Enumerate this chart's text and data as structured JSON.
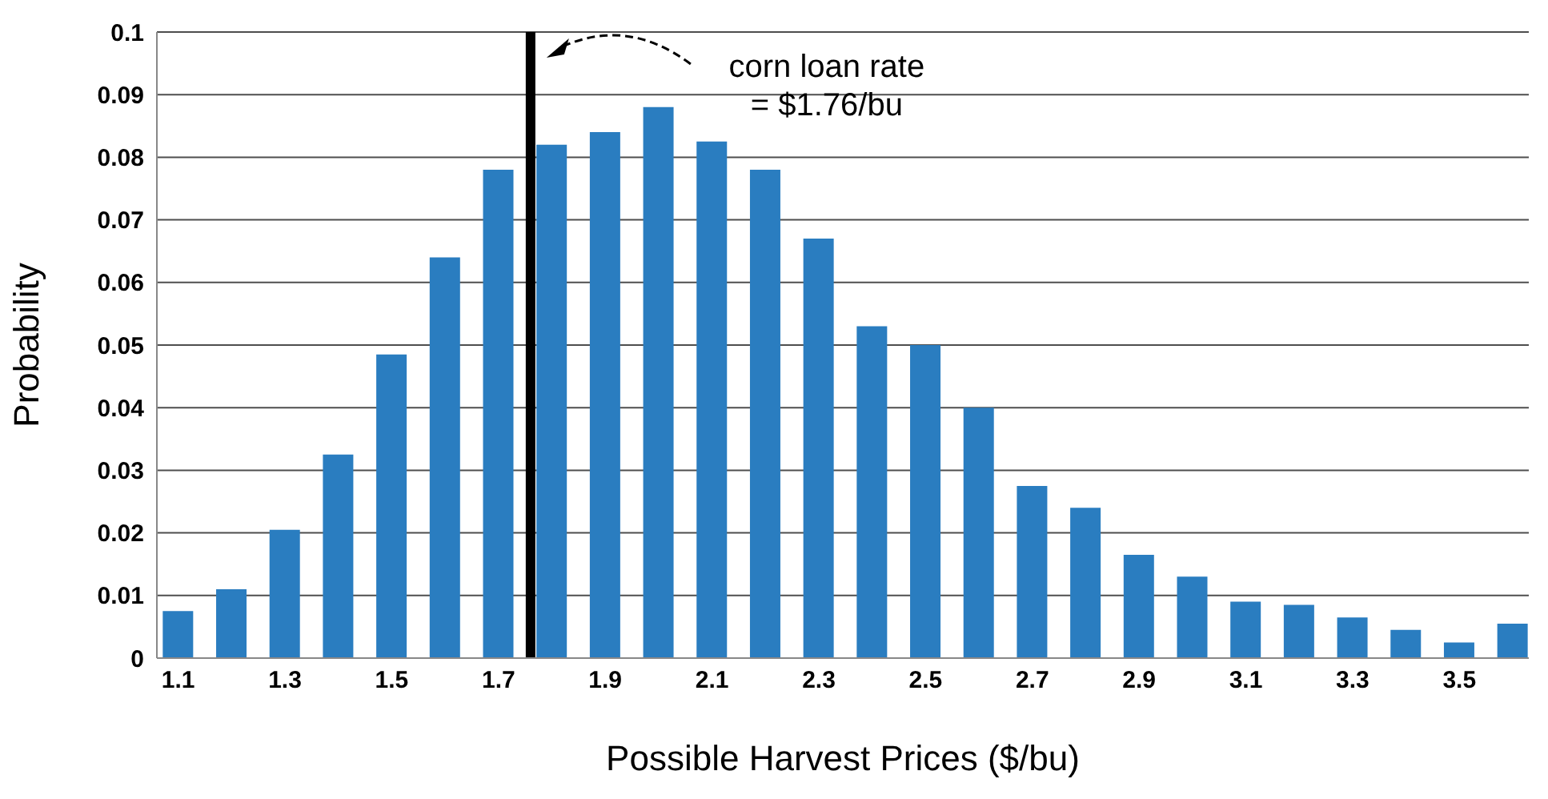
{
  "chart_data": {
    "type": "bar",
    "xlabel": "Possible Harvest Prices ($/bu)",
    "ylabel": "Probability",
    "x": [
      1.1,
      1.2,
      1.3,
      1.4,
      1.5,
      1.6,
      1.7,
      1.8,
      1.9,
      2.0,
      2.1,
      2.2,
      2.3,
      2.4,
      2.5,
      2.6,
      2.7,
      2.8,
      2.9,
      3.0,
      3.1,
      3.2,
      3.3,
      3.4,
      3.5,
      3.6
    ],
    "values": [
      0.0075,
      0.011,
      0.0205,
      0.0325,
      0.0485,
      0.064,
      0.078,
      0.082,
      0.084,
      0.088,
      0.0825,
      0.078,
      0.067,
      0.053,
      0.05,
      0.04,
      0.0275,
      0.024,
      0.0165,
      0.013,
      0.009,
      0.0085,
      0.0065,
      0.0045,
      0.0025,
      0.0055
    ],
    "color": "#2a7dc0",
    "xlim": [
      1.06,
      3.63
    ],
    "xticks": [
      1.1,
      1.3,
      1.5,
      1.7,
      1.9,
      2.1,
      2.3,
      2.5,
      2.7,
      2.9,
      3.1,
      3.3,
      3.5
    ],
    "ylim": [
      0,
      0.1
    ],
    "yticks": [
      0,
      0.01,
      0.02,
      0.03,
      0.04,
      0.05,
      0.06,
      0.07,
      0.08,
      0.09,
      0.1
    ],
    "grid": "y",
    "ref_lines": [
      {
        "axis": "x",
        "value": 1.76,
        "label": "corn loan rate\n= $1.76/bu",
        "color": "#000000"
      }
    ]
  }
}
